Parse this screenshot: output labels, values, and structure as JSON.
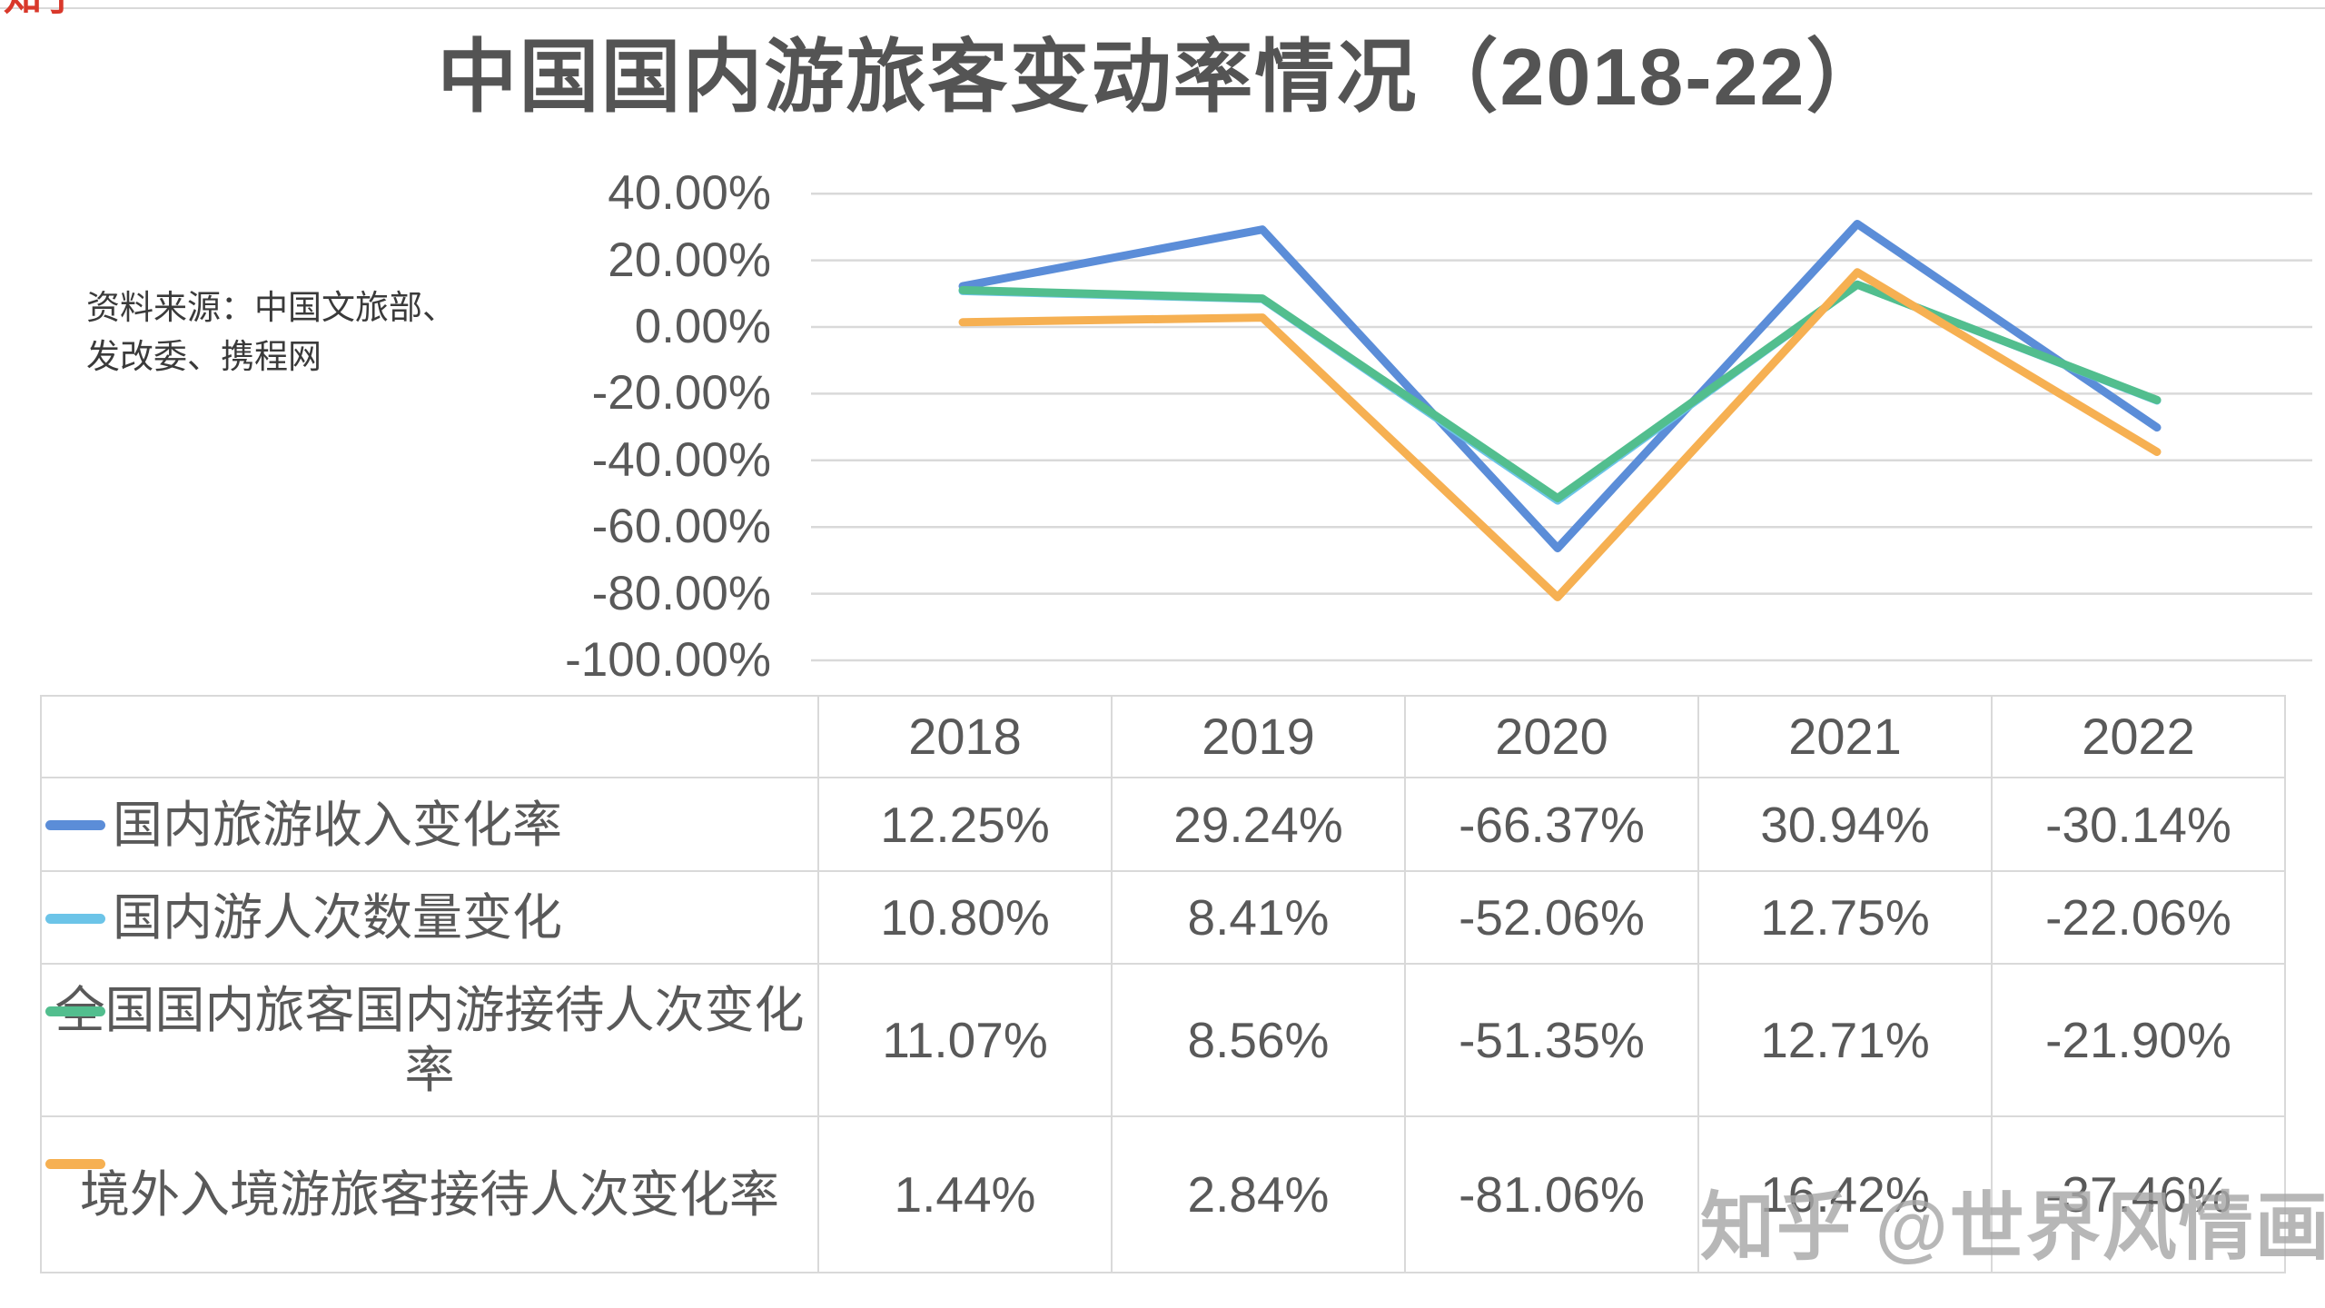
{
  "title": "中国国内游旅客变动率情况（2018-22）",
  "corner_watermark": "知乎",
  "watermark": "知乎 @世界风情画",
  "source": {
    "lines": [
      "资料来源：中国文旅部、",
      "发改委、携程网"
    ]
  },
  "chart_data": {
    "type": "line",
    "categories": [
      "2018",
      "2019",
      "2020",
      "2021",
      "2022"
    ],
    "series": [
      {
        "name": "国内旅游收入变化率",
        "color": "#5B8DD8",
        "values": [
          12.25,
          29.24,
          -66.37,
          30.94,
          -30.14
        ],
        "labels": [
          "12.25%",
          "29.24%",
          "-66.37%",
          "30.94%",
          "-30.14%"
        ]
      },
      {
        "name": "国内游人次数量变化",
        "color": "#6CC4E8",
        "values": [
          10.8,
          8.41,
          -52.06,
          12.75,
          -22.06
        ],
        "labels": [
          "10.80%",
          "8.41%",
          "-52.06%",
          "12.75%",
          "-22.06%"
        ]
      },
      {
        "name": "全国国内旅客国内游接待人次变化率",
        "color": "#52BE8E",
        "values": [
          11.07,
          8.56,
          -51.35,
          12.71,
          -21.9
        ],
        "labels": [
          "11.07%",
          "8.56%",
          "-51.35%",
          "12.71%",
          "-21.90%"
        ]
      },
      {
        "name": "境外入境游旅客接待人次变化率",
        "color": "#F6B052",
        "values": [
          1.44,
          2.84,
          -81.06,
          16.42,
          -37.46
        ],
        "labels": [
          "1.44%",
          "2.84%",
          "-81.06%",
          "16.42%",
          "-37.46%"
        ]
      }
    ],
    "y_axis": {
      "min": -100,
      "max": 40,
      "ticks": [
        {
          "label": "40.00%",
          "value": 40
        },
        {
          "label": "20.00%",
          "value": 20
        },
        {
          "label": "0.00%",
          "value": 0
        },
        {
          "label": "-20.00%",
          "value": -20
        },
        {
          "label": "-40.00%",
          "value": -40
        },
        {
          "label": "-60.00%",
          "value": -60
        },
        {
          "label": "-80.00%",
          "value": -80
        },
        {
          "label": "-100.00%",
          "value": -100
        }
      ]
    },
    "grid": true,
    "legend_position": "table-left-keys",
    "gridline_color": "#d9d9d9"
  }
}
